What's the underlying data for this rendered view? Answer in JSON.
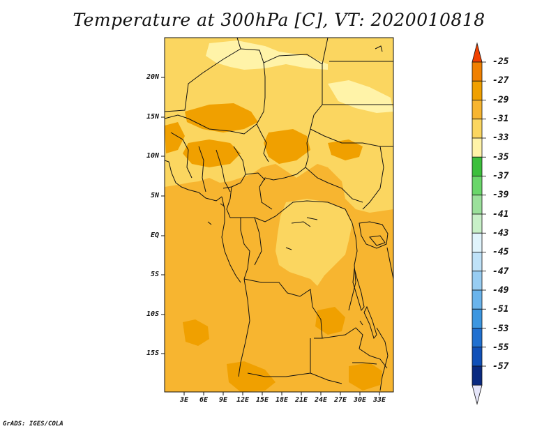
{
  "title": "Temperature at 300hPa [C], VT: 2020010818",
  "credit": "GrADS: IGES/COLA",
  "lat_labels": [
    "20N",
    "15N",
    "10N",
    "5N",
    "EQ",
    "5S",
    "10S",
    "15S"
  ],
  "lon_labels": [
    "3E",
    "6E",
    "9E",
    "12E",
    "15E",
    "18E",
    "21E",
    "24E",
    "27E",
    "30E",
    "33E"
  ],
  "colorbar": {
    "labels": [
      "-25",
      "-27",
      "-29",
      "-31",
      "-33",
      "-35",
      "-37",
      "-39",
      "-41",
      "-43",
      "-45",
      "-47",
      "-49",
      "-51",
      "-53",
      "-55",
      "-57"
    ],
    "colors": [
      "#f06000",
      "#f08000",
      "#f0a000",
      "#f7b530",
      "#fbd660",
      "#fff3a8",
      "#3cbf3c",
      "#6ad66a",
      "#9be09b",
      "#c8f0c8",
      "#e0f4fc",
      "#bfe2f8",
      "#98cdf2",
      "#6ab4ec",
      "#3c96e0",
      "#2070d0",
      "#1050b8",
      "#0a2a80",
      "#e6e6fa"
    ],
    "top_arrow_color": "#f04000",
    "bottom_arrow_color": "#e6e6fa"
  },
  "palette": {
    "base": "#f7b530",
    "warm": "#f0a000",
    "light": "#fbd660",
    "palest": "#fff3a8"
  }
}
